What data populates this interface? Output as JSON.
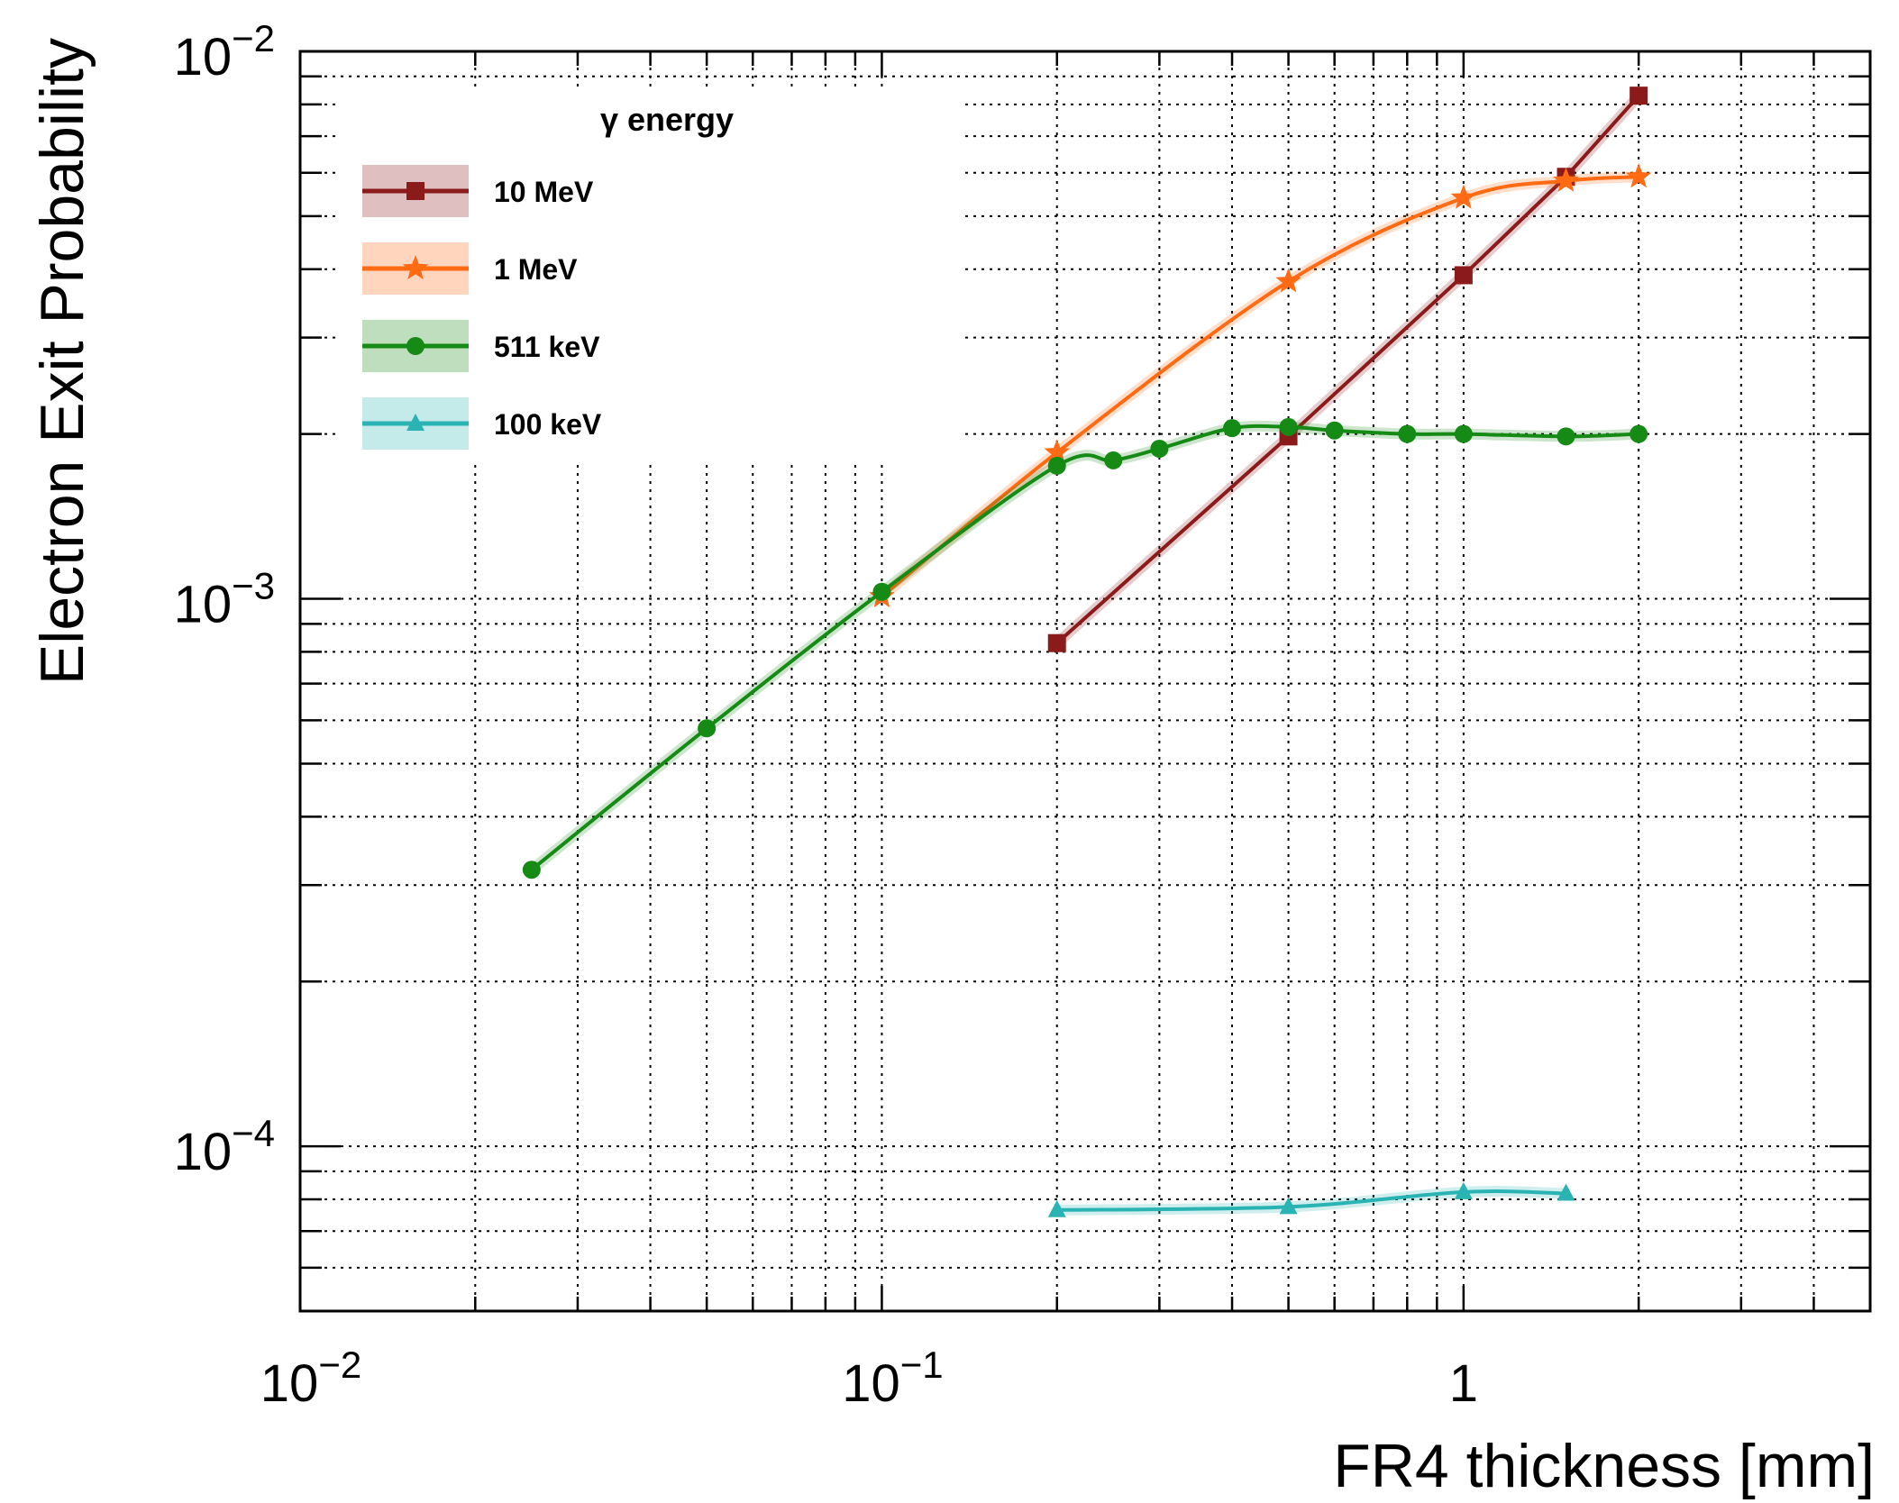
{
  "chart_data": {
    "type": "line",
    "xlabel": "FR4 thickness [mm]",
    "ylabel": "Electron Exit Probability",
    "xscale": "log",
    "yscale": "log",
    "xlim": [
      0.01,
      5
    ],
    "ylim": [
      5e-05,
      0.01
    ],
    "grid": true,
    "x_tick_labels": [
      {
        "value": 0.01,
        "base": "10",
        "exp": "−2"
      },
      {
        "value": 0.1,
        "base": "10",
        "exp": "−1"
      },
      {
        "value": 1,
        "base": "1",
        "exp": ""
      }
    ],
    "y_tick_labels": [
      {
        "value": 0.01,
        "base": "10",
        "exp": "−2"
      },
      {
        "value": 0.001,
        "base": "10",
        "exp": "−3"
      },
      {
        "value": 0.0001,
        "base": "10",
        "exp": "−4"
      }
    ],
    "legend": {
      "title": "γ energy",
      "position": "top-left"
    },
    "series": [
      {
        "name": "10 MeV",
        "color": "#8b1a1a",
        "marker": "square",
        "x": [
          0.2,
          0.5,
          1.0,
          1.5,
          2.0
        ],
        "y": [
          0.00083,
          0.00198,
          0.0039,
          0.0059,
          0.0083
        ]
      },
      {
        "name": "1 MeV",
        "color": "#ff6a13",
        "marker": "star",
        "x": [
          0.1,
          0.2,
          0.5,
          1.0,
          1.5,
          2.0
        ],
        "y": [
          0.00101,
          0.00185,
          0.0038,
          0.0054,
          0.0058,
          0.0059
        ]
      },
      {
        "name": "511 keV",
        "color": "#158a15",
        "marker": "circle",
        "x": [
          0.025,
          0.05,
          0.1,
          0.2,
          0.25,
          0.3,
          0.4,
          0.5,
          0.6,
          0.8,
          1.0,
          1.5,
          2.0
        ],
        "y": [
          0.00032,
          0.00058,
          0.00103,
          0.00175,
          0.00179,
          0.00188,
          0.00205,
          0.00206,
          0.00203,
          0.002,
          0.002,
          0.00198,
          0.002
        ]
      },
      {
        "name": "100 keV",
        "color": "#2ab3b3",
        "marker": "triangle",
        "x": [
          0.2,
          0.5,
          1.0,
          1.5
        ],
        "y": [
          7.65e-05,
          7.75e-05,
          8.25e-05,
          8.2e-05
        ]
      }
    ]
  }
}
